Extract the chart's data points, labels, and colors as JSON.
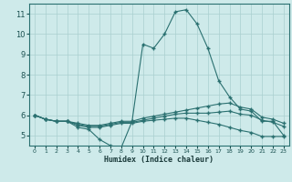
{
  "xlabel": "Humidex (Indice chaleur)",
  "background_color": "#ceeaea",
  "grid_color": "#aacfcf",
  "line_color": "#2a7070",
  "xlim": [
    -0.5,
    23.5
  ],
  "ylim": [
    4.5,
    11.5
  ],
  "yticks": [
    5,
    6,
    7,
    8,
    9,
    10,
    11
  ],
  "xticks": [
    0,
    1,
    2,
    3,
    4,
    5,
    6,
    7,
    8,
    9,
    10,
    11,
    12,
    13,
    14,
    15,
    16,
    17,
    18,
    19,
    20,
    21,
    22,
    23
  ],
  "lines": [
    {
      "x": [
        0,
        1,
        2,
        3,
        4,
        5,
        6,
        7,
        8,
        9,
        10,
        11,
        12,
        13,
        14,
        15,
        16,
        17,
        18,
        19,
        20,
        21,
        22,
        23
      ],
      "y": [
        6.0,
        5.8,
        5.7,
        5.7,
        5.4,
        5.3,
        4.8,
        4.5,
        4.4,
        5.7,
        9.5,
        9.3,
        10.0,
        11.1,
        11.2,
        10.5,
        9.3,
        7.7,
        6.9,
        6.3,
        6.2,
        5.7,
        5.7,
        5.0
      ]
    },
    {
      "x": [
        0,
        1,
        2,
        3,
        4,
        5,
        6,
        7,
        8,
        9,
        10,
        11,
        12,
        13,
        14,
        15,
        16,
        17,
        18,
        19,
        20,
        21,
        22,
        23
      ],
      "y": [
        6.0,
        5.8,
        5.7,
        5.7,
        5.6,
        5.5,
        5.5,
        5.6,
        5.7,
        5.7,
        5.85,
        5.95,
        6.05,
        6.15,
        6.25,
        6.35,
        6.45,
        6.55,
        6.6,
        6.4,
        6.3,
        5.9,
        5.8,
        5.6
      ]
    },
    {
      "x": [
        0,
        1,
        2,
        3,
        4,
        5,
        6,
        7,
        8,
        9,
        10,
        11,
        12,
        13,
        14,
        15,
        16,
        17,
        18,
        19,
        20,
        21,
        22,
        23
      ],
      "y": [
        6.0,
        5.8,
        5.7,
        5.7,
        5.55,
        5.45,
        5.45,
        5.55,
        5.65,
        5.65,
        5.75,
        5.85,
        5.95,
        6.05,
        6.1,
        6.1,
        6.1,
        6.15,
        6.2,
        6.05,
        6.0,
        5.75,
        5.65,
        5.45
      ]
    },
    {
      "x": [
        0,
        1,
        2,
        3,
        4,
        5,
        6,
        7,
        8,
        9,
        10,
        11,
        12,
        13,
        14,
        15,
        16,
        17,
        18,
        19,
        20,
        21,
        22,
        23
      ],
      "y": [
        6.0,
        5.8,
        5.7,
        5.7,
        5.5,
        5.4,
        5.4,
        5.5,
        5.6,
        5.6,
        5.7,
        5.75,
        5.8,
        5.85,
        5.85,
        5.75,
        5.65,
        5.55,
        5.4,
        5.25,
        5.15,
        4.95,
        4.95,
        4.95
      ]
    }
  ]
}
